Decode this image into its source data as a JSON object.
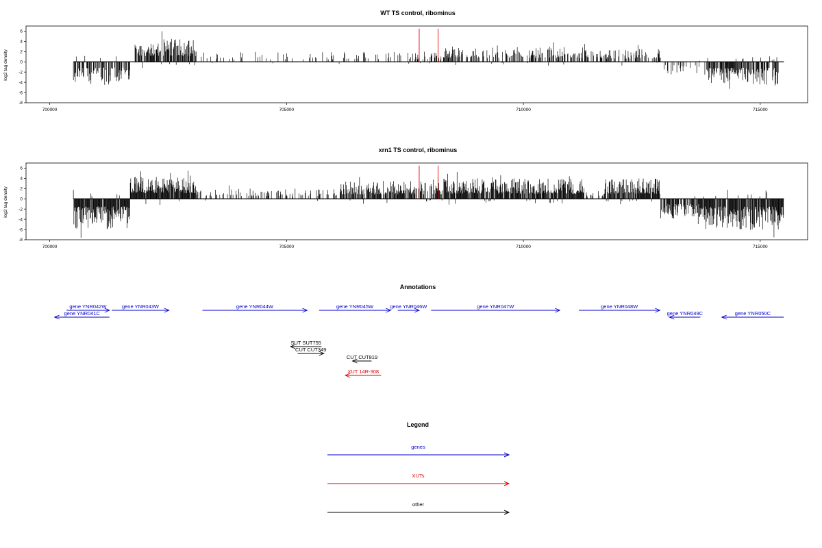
{
  "chart_data": [
    {
      "type": "bar",
      "title": "WT TS control, ribominus",
      "ylabel": "log2 tag density",
      "xlabel": "",
      "xlim": [
        699500,
        716000
      ],
      "ylim": [
        -8,
        7
      ],
      "xticks": [
        "700000",
        "705000",
        "710000",
        "715000"
      ],
      "yticks": [
        "-8",
        "-6",
        "-4",
        "-2",
        "0",
        "2",
        "4",
        "6"
      ],
      "markers": {
        "x": [
          707800,
          708200
        ],
        "color": "#e00000"
      },
      "segments": [
        {
          "from": 700500,
          "to": 701700,
          "amp": -4.5,
          "density": 0.7
        },
        {
          "from": 701800,
          "to": 703100,
          "amp": 4.5,
          "density": 0.8
        },
        {
          "from": 703100,
          "to": 707700,
          "amp": 2.0,
          "density": 0.15
        },
        {
          "from": 707700,
          "to": 708300,
          "amp": 2.0,
          "density": 0.4
        },
        {
          "from": 708300,
          "to": 711400,
          "amp": 3.0,
          "density": 0.5
        },
        {
          "from": 711400,
          "to": 712900,
          "amp": 2.5,
          "density": 0.4
        },
        {
          "from": 712900,
          "to": 713900,
          "amp": -2.5,
          "density": 0.25
        },
        {
          "from": 713900,
          "to": 715400,
          "amp": -4.5,
          "density": 0.8
        }
      ]
    },
    {
      "type": "bar",
      "title": "xrn1 TS control, ribominus",
      "ylabel": "log2 tag density",
      "xlabel": "",
      "xlim": [
        699500,
        716000
      ],
      "ylim": [
        -8,
        7
      ],
      "xticks": [
        "700000",
        "705000",
        "710000",
        "715000"
      ],
      "yticks": [
        "-8",
        "-6",
        "-4",
        "-2",
        "0",
        "2",
        "4",
        "6"
      ],
      "markers": {
        "x": [
          707800,
          708200
        ],
        "color": "#e00000"
      },
      "segments": [
        {
          "from": 700500,
          "to": 701700,
          "amp": -6.0,
          "density": 0.95
        },
        {
          "from": 701700,
          "to": 703100,
          "amp": 4.5,
          "density": 0.95
        },
        {
          "from": 703100,
          "to": 706100,
          "amp": 2.0,
          "density": 0.3
        },
        {
          "from": 706100,
          "to": 707800,
          "amp": 3.5,
          "density": 0.8
        },
        {
          "from": 707800,
          "to": 708300,
          "amp": 3.5,
          "density": 0.7
        },
        {
          "from": 708300,
          "to": 711300,
          "amp": 4.0,
          "density": 0.9
        },
        {
          "from": 711300,
          "to": 711700,
          "amp": 1.5,
          "density": 0.3
        },
        {
          "from": 711700,
          "to": 712900,
          "amp": 4.0,
          "density": 0.9
        },
        {
          "from": 712900,
          "to": 713800,
          "amp": -4.0,
          "density": 0.7
        },
        {
          "from": 713800,
          "to": 715500,
          "amp": -6.0,
          "density": 0.95
        }
      ]
    }
  ],
  "annotations": {
    "title": "Annotations",
    "items": [
      {
        "label": "gene YNR041C",
        "start": 700500,
        "end": 702800,
        "strand": "-",
        "row": 1,
        "color": "#0000cc"
      },
      {
        "label": "gene YNR042W",
        "start": 701000,
        "end": 702800,
        "strand": "+",
        "row": 0,
        "color": "#0000cc"
      },
      {
        "label": "gene YNR043W",
        "start": 702900,
        "end": 705300,
        "strand": "+",
        "row": 0,
        "color": "#0000cc"
      },
      {
        "label": "gene YNR044W",
        "start": 706700,
        "end": 711100,
        "strand": "+",
        "row": 0,
        "color": "#0000cc"
      },
      {
        "label": "gene YNR045W",
        "start": 711600,
        "end": 714600,
        "strand": "+",
        "row": 0,
        "color": "#0000cc"
      },
      {
        "label": "gene YNR046W",
        "start": 714900,
        "end": 715800,
        "strand": "+",
        "row": 0,
        "color": "#0000cc"
      },
      {
        "label": "gene YNR047W",
        "start": 716300,
        "end": 721700,
        "strand": "+",
        "row": 0,
        "color": "#0000cc"
      },
      {
        "label": "gene YNR048W",
        "start": 722500,
        "end": 725900,
        "strand": "+",
        "row": 0,
        "color": "#0000cc"
      },
      {
        "label": "gene YNR049C",
        "start": 726300,
        "end": 727600,
        "strand": "-",
        "row": 1,
        "color": "#0000cc"
      },
      {
        "label": "gene YNR050C",
        "start": 728500,
        "end": 731100,
        "strand": "-",
        "row": 1,
        "color": "#0000cc"
      },
      {
        "label": "SUT SUT755",
        "start": 710400,
        "end": 711700,
        "strand": "-",
        "row": 4,
        "color": "#000000"
      },
      {
        "label": "CUT CUT349",
        "start": 710700,
        "end": 711800,
        "strand": "+",
        "row": 5,
        "color": "#000000"
      },
      {
        "label": "CUT CUT819",
        "start": 713000,
        "end": 713800,
        "strand": "-",
        "row": 6,
        "color": "#000000"
      },
      {
        "label": "XUT 14R-308",
        "start": 712700,
        "end": 714200,
        "strand": "-",
        "row": 7,
        "color": "#dd0000"
      }
    ]
  },
  "legend": {
    "title": "Legend",
    "items": [
      {
        "label": "genes",
        "color": "#0000cc"
      },
      {
        "label": "XUTs",
        "color": "#dd0000"
      },
      {
        "label": "other",
        "color": "#000000"
      }
    ]
  }
}
